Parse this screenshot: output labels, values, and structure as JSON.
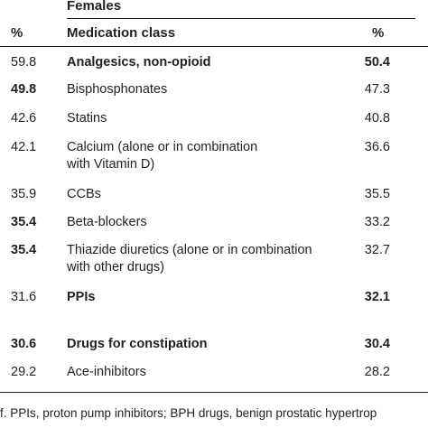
{
  "header": {
    "group_label": "Females",
    "col_left_percent": "%",
    "col_medication": "Medication class",
    "col_right_percent": "%"
  },
  "rows": [
    {
      "left": "59.8",
      "left_bold": false,
      "name": [
        "Analgesics, non-opioid"
      ],
      "name_bold": true,
      "right": "50.4",
      "right_bold": true
    },
    {
      "left": "49.8",
      "left_bold": true,
      "name": [
        "Bisphosphonates"
      ],
      "name_bold": false,
      "right": "47.3",
      "right_bold": false
    },
    {
      "left": "42.6",
      "left_bold": false,
      "name": [
        "Statins"
      ],
      "name_bold": false,
      "right": "40.8",
      "right_bold": false
    },
    {
      "left": "42.1",
      "left_bold": false,
      "name": [
        "Calcium (alone or in combination",
        "with Vitamin D)"
      ],
      "name_bold": false,
      "right": "36.6",
      "right_bold": false
    },
    {
      "left": "35.9",
      "left_bold": false,
      "name": [
        "CCBs"
      ],
      "name_bold": false,
      "right": "35.5",
      "right_bold": false
    },
    {
      "left": "35.4",
      "left_bold": true,
      "name": [
        "Beta-blockers"
      ],
      "name_bold": false,
      "right": "33.2",
      "right_bold": false
    },
    {
      "left": "35.4",
      "left_bold": true,
      "name": [
        "Thiazide diuretics (alone or in combination",
        "with other drugs)"
      ],
      "name_bold": false,
      "right": "32.7",
      "right_bold": false
    },
    {
      "left": "31.6",
      "left_bold": false,
      "name": [
        "PPIs"
      ],
      "name_bold": true,
      "right": "32.1",
      "right_bold": true
    },
    {
      "left": "30.6",
      "left_bold": true,
      "name": [
        "Drugs for constipation"
      ],
      "name_bold": true,
      "right": "30.4",
      "right_bold": true
    },
    {
      "left": "29.2",
      "left_bold": false,
      "name": [
        "Ace-inhibitors"
      ],
      "name_bold": false,
      "right": "28.2",
      "right_bold": false
    }
  ],
  "footnote": "f. PPIs, proton pump inhibitors; BPH drugs, benign prostatic hypertrop"
}
